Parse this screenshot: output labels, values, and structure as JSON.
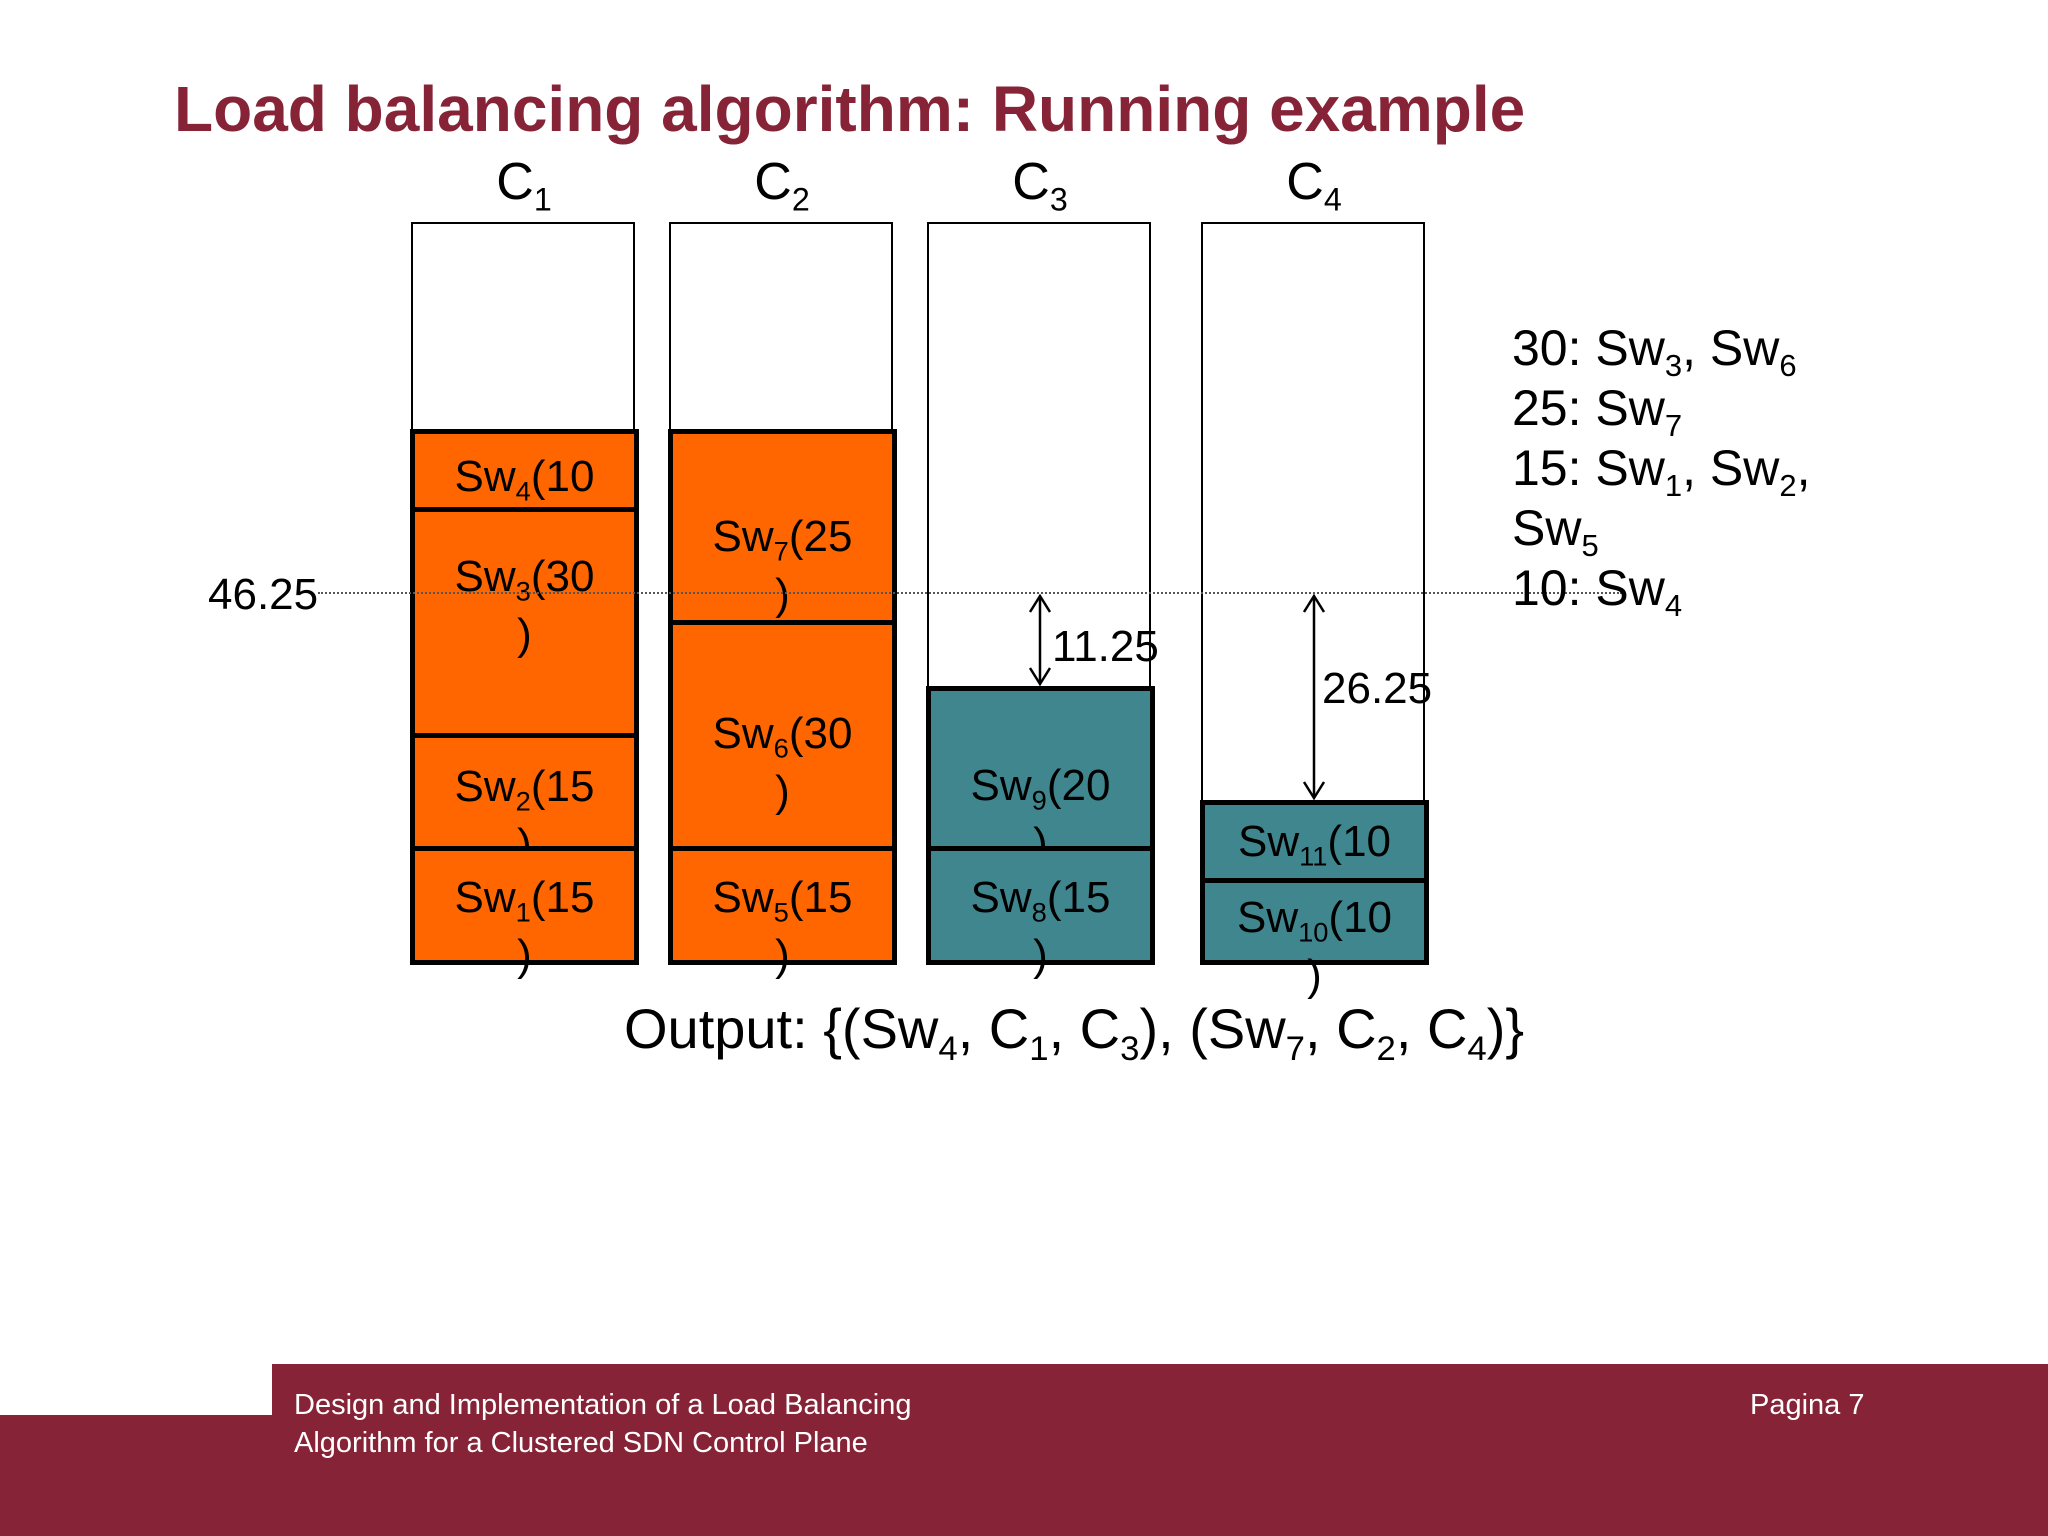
{
  "slide": {
    "title": "Load balancing algorithm: Running example"
  },
  "columns": [
    {
      "name": "C",
      "sub": "1"
    },
    {
      "name": "C",
      "sub": "2"
    },
    {
      "name": "C",
      "sub": "3"
    },
    {
      "name": "C",
      "sub": "4"
    }
  ],
  "blocks": {
    "c1": [
      {
        "pre": "Sw",
        "sub": "4",
        "post": "(10\n)"
      },
      {
        "pre": "Sw",
        "sub": "3",
        "post": "(30\n)"
      },
      {
        "pre": "Sw",
        "sub": "2",
        "post": "(15\n)"
      },
      {
        "pre": "Sw",
        "sub": "1",
        "post": "(15\n)"
      }
    ],
    "c2": [
      {
        "pre": "Sw",
        "sub": "7",
        "post": "(25\n)"
      },
      {
        "pre": "Sw",
        "sub": "6",
        "post": "(30\n)"
      },
      {
        "pre": "Sw",
        "sub": "5",
        "post": "(15\n)"
      }
    ],
    "c3": [
      {
        "pre": "Sw",
        "sub": "9",
        "post": "(20\n)"
      },
      {
        "pre": "Sw",
        "sub": "8",
        "post": "(15\n)"
      }
    ],
    "c4": [
      {
        "pre": "Sw",
        "sub": "11",
        "post": "(10\n)"
      },
      {
        "pre": "Sw",
        "sub": "10",
        "post": "(10\n)"
      }
    ]
  },
  "level": "46.25",
  "gaps": [
    "11.25",
    "26.25"
  ],
  "legend": {
    "line1_pre": "30: Sw",
    "line1_sub1": "3",
    "line1_mid": ", Sw",
    "line1_sub2": "6",
    "line2_pre": "25: Sw",
    "line2_sub": "7",
    "line3_pre": "15: Sw",
    "line3_sub1": "1",
    "line3_mid": ", Sw",
    "line3_sub2": "2",
    "line3_end": ",",
    "line4_pre": "Sw",
    "line4_sub": "5",
    "line5_pre": "10: Sw",
    "line5_sub": "4"
  },
  "output": {
    "label": "Output:",
    "p1": " {(Sw",
    "s1": "4",
    "p2": ", C",
    "s2": "1",
    "p3": ", C",
    "s3": "3",
    "p4": "), (Sw",
    "s4": "7",
    "p5": ", C",
    "s5": "2",
    "p6": ", C",
    "s6": "4",
    "p7": ")}"
  },
  "footer": {
    "line1": "Design and Implementation of a Load Balancing",
    "line2": "Algorithm for a Clustered SDN Control Plane",
    "page": "Pagina 7"
  },
  "colors": {
    "accent": "#862337",
    "orange": "#ff6600",
    "teal": "#3f868e"
  }
}
